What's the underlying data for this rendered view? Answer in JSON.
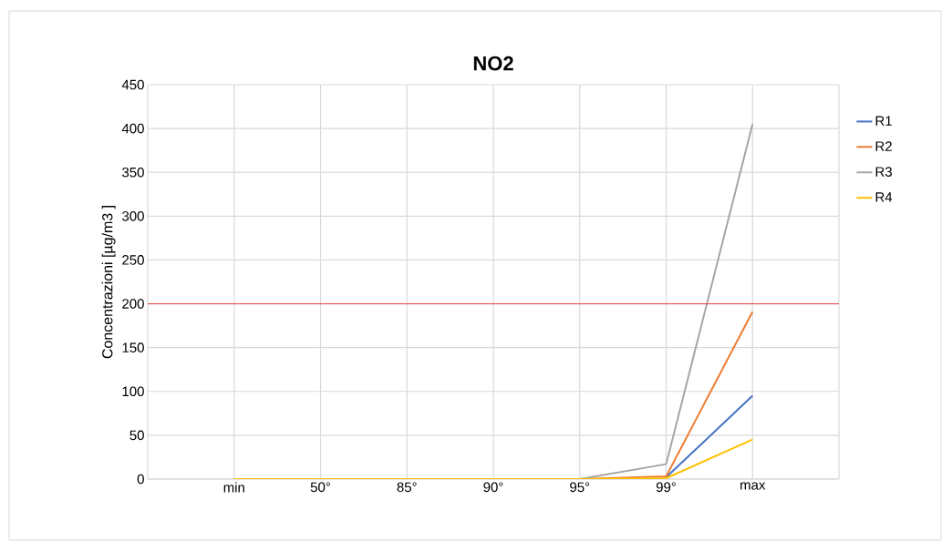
{
  "chart_data": {
    "type": "line",
    "title": "NO2",
    "ylabel": "Concentrazioni [µg/m3 ]",
    "categories": [
      null,
      "min",
      "50°",
      "85°",
      "90°",
      "95°",
      "99°",
      "max",
      null
    ],
    "series": [
      {
        "name": "R1",
        "color": "#4472c4",
        "values": [
          null,
          null,
          null,
          null,
          null,
          null,
          2,
          95,
          null
        ]
      },
      {
        "name": "R2",
        "color": "#ed7d31",
        "values": [
          null,
          null,
          null,
          null,
          null,
          0,
          3,
          191,
          null
        ]
      },
      {
        "name": "R3",
        "color": "#a5a5a5",
        "values": [
          null,
          0,
          0,
          0,
          0,
          0,
          17,
          405,
          null
        ]
      },
      {
        "name": "R4",
        "color": "#ffc000",
        "values": [
          null,
          0,
          0,
          0,
          0,
          0,
          1,
          45,
          null
        ]
      }
    ],
    "ylim": [
      0,
      450
    ],
    "yticks": [
      0,
      50,
      100,
      150,
      200,
      250,
      300,
      350,
      400,
      450
    ],
    "ref_lines": [
      {
        "axis": "y",
        "value": 200,
        "color": "#e84c4c"
      }
    ],
    "grid": true,
    "legend": "right",
    "marker": "none",
    "line_style": "solid"
  }
}
